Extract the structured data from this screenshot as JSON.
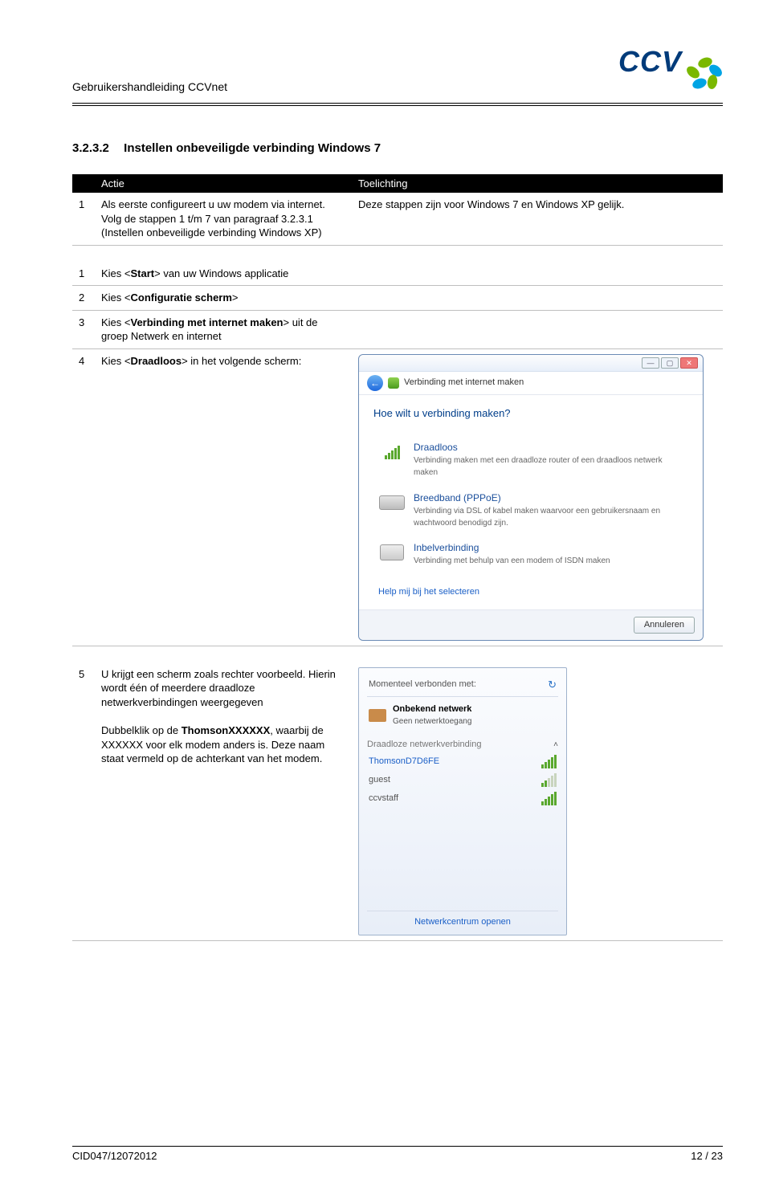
{
  "header": {
    "doc_title": "Gebruikershandleiding CCVnet",
    "logo_text": "CCV"
  },
  "section": {
    "number": "3.2.3.2",
    "title": "Instellen onbeveiligde verbinding Windows 7"
  },
  "table1": {
    "headers": {
      "n": "",
      "actie": "Actie",
      "toelichting": "Toelichting"
    },
    "row": {
      "n": "1",
      "actie_l1": "Als eerste configureert u uw modem via internet. Volg de stappen 1 t/m 7 van paragraaf 3.2.3.1 (Instellen onbeveiligde verbinding Windows XP)",
      "toelichting": "Deze stappen zijn voor Windows 7 en Windows XP gelijk."
    }
  },
  "table2": {
    "r1": {
      "n": "1",
      "a_pre": "Kies <",
      "a_b": "Start",
      "a_post": "> van uw Windows applicatie"
    },
    "r2": {
      "n": "2",
      "a_pre": "Kies <",
      "a_b": "Configuratie scherm",
      "a_post": ">"
    },
    "r3": {
      "n": "3",
      "a_pre": "Kies <",
      "a_b": "Verbinding met internet maken",
      "a_post": "> uit de groep Netwerk en internet"
    },
    "r4": {
      "n": "4",
      "a_pre": "Kies <",
      "a_b": "Draadloos",
      "a_post": "> in het volgende scherm:"
    }
  },
  "wizard": {
    "breadcrumb": "Verbinding met internet maken",
    "heading": "Hoe wilt u verbinding maken?",
    "opt1": {
      "title": "Draadloos",
      "sub": "Verbinding maken met een draadloze router of een draadloos netwerk maken"
    },
    "opt2": {
      "title": "Breedband (PPPoE)",
      "sub": "Verbinding via DSL of kabel maken waarvoor een gebruikersnaam en wachtwoord benodigd zijn."
    },
    "opt3": {
      "title": "Inbelverbinding",
      "sub": "Verbinding met behulp van een modem of ISDN maken"
    },
    "help": "Help mij bij het selecteren",
    "cancel": "Annuleren"
  },
  "table3": {
    "n": "5",
    "a_p1": "U krijgt een scherm zoals rechter voorbeeld. Hierin wordt één of meerdere draadloze netwerkverbindingen weergegeven",
    "a_p2_pre": "Dubbelklik op de ",
    "a_p2_b": "ThomsonXXXXXX",
    "a_p2_post": ", waarbij de XXXXXX voor elk modem anders is. Deze naam staat vermeld op de achterkant van het modem."
  },
  "netpopup": {
    "head": "Momenteel verbonden met:",
    "unk_b": "Onbekend netwerk",
    "unk_s": "Geen netwerktoegang",
    "sec": "Draadloze netwerkverbinding",
    "n1": "ThomsonD7D6FE",
    "n2": "guest",
    "n3": "ccvstaff",
    "footer": "Netwerkcentrum openen"
  },
  "footer": {
    "left": "CID047/12072012",
    "right": "12 / 23"
  }
}
